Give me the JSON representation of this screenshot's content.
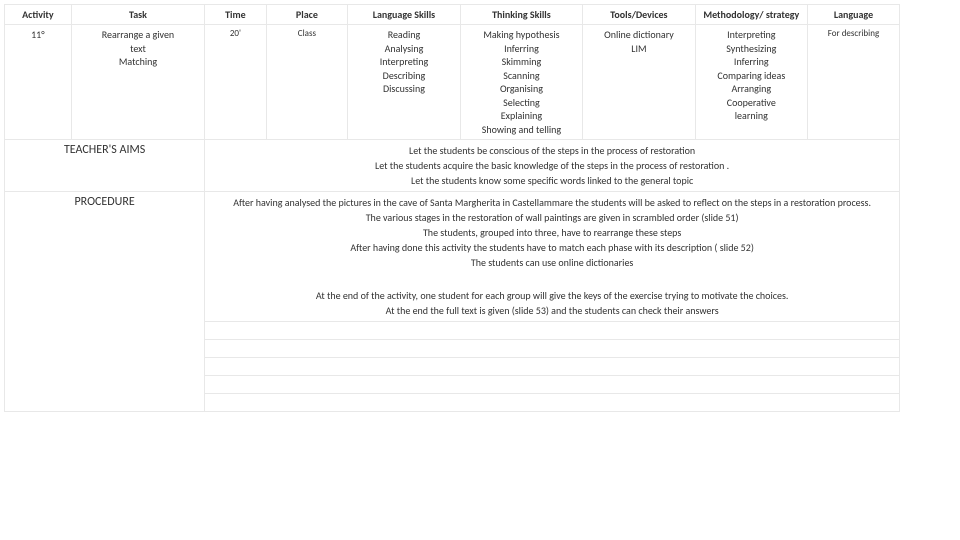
{
  "headers": {
    "activity": "Activity",
    "task": "Task",
    "time": "Time",
    "place": "Place",
    "language_skills": "Language Skills",
    "thinking_skills": "Thinking Skills",
    "tools": "Tools/Devices",
    "methodology": "Methodology/ strategy",
    "language": "Language"
  },
  "row1": {
    "activity": "11°",
    "task": [
      "Rearrange a given",
      "text",
      "Matching"
    ],
    "time": "20'",
    "place": "Class",
    "language_skills": [
      "Reading",
      "Analysing",
      "Interpreting",
      "Describing",
      "Discussing"
    ],
    "thinking_skills": [
      "Making hypothesis",
      "Inferring",
      "Skimming",
      "Scanning",
      "Organising",
      "Selecting",
      "Explaining",
      "Showing and telling"
    ],
    "tools": [
      "Online dictionary",
      "LIM"
    ],
    "methodology": [
      "Interpreting",
      "Synthesizing",
      "Inferring",
      "Comparing ideas",
      "Arranging",
      "Cooperative",
      "learning"
    ],
    "language": "For describing"
  },
  "aims": {
    "label": "TEACHER'S AIMS",
    "lines": [
      "Let the students be conscious of the steps in the process of restoration",
      "Let the students acquire the basic knowledge of the steps in the process of restoration .",
      "Let the  students know some specific words linked to the general topic"
    ]
  },
  "procedure": {
    "label": "PROCEDURE",
    "block1": [
      "After having analysed the pictures  in the cave of  Santa Margherita in Castellammare the students will be asked to reflect on the steps in a restoration process.",
      "The various stages in the restoration of wall paintings are given in scrambled order (slide 51)",
      "The students, grouped into three, have to rearrange these steps",
      "After having done this activity the students have to match each phase with its description ( slide 52)",
      "The students can use online dictionaries"
    ],
    "block2": [
      "At the end of the activity, one student for each group will give the keys of the exercise trying to motivate the choices.",
      "At the end the full text is given (slide 53) and the students can check their answers"
    ]
  }
}
